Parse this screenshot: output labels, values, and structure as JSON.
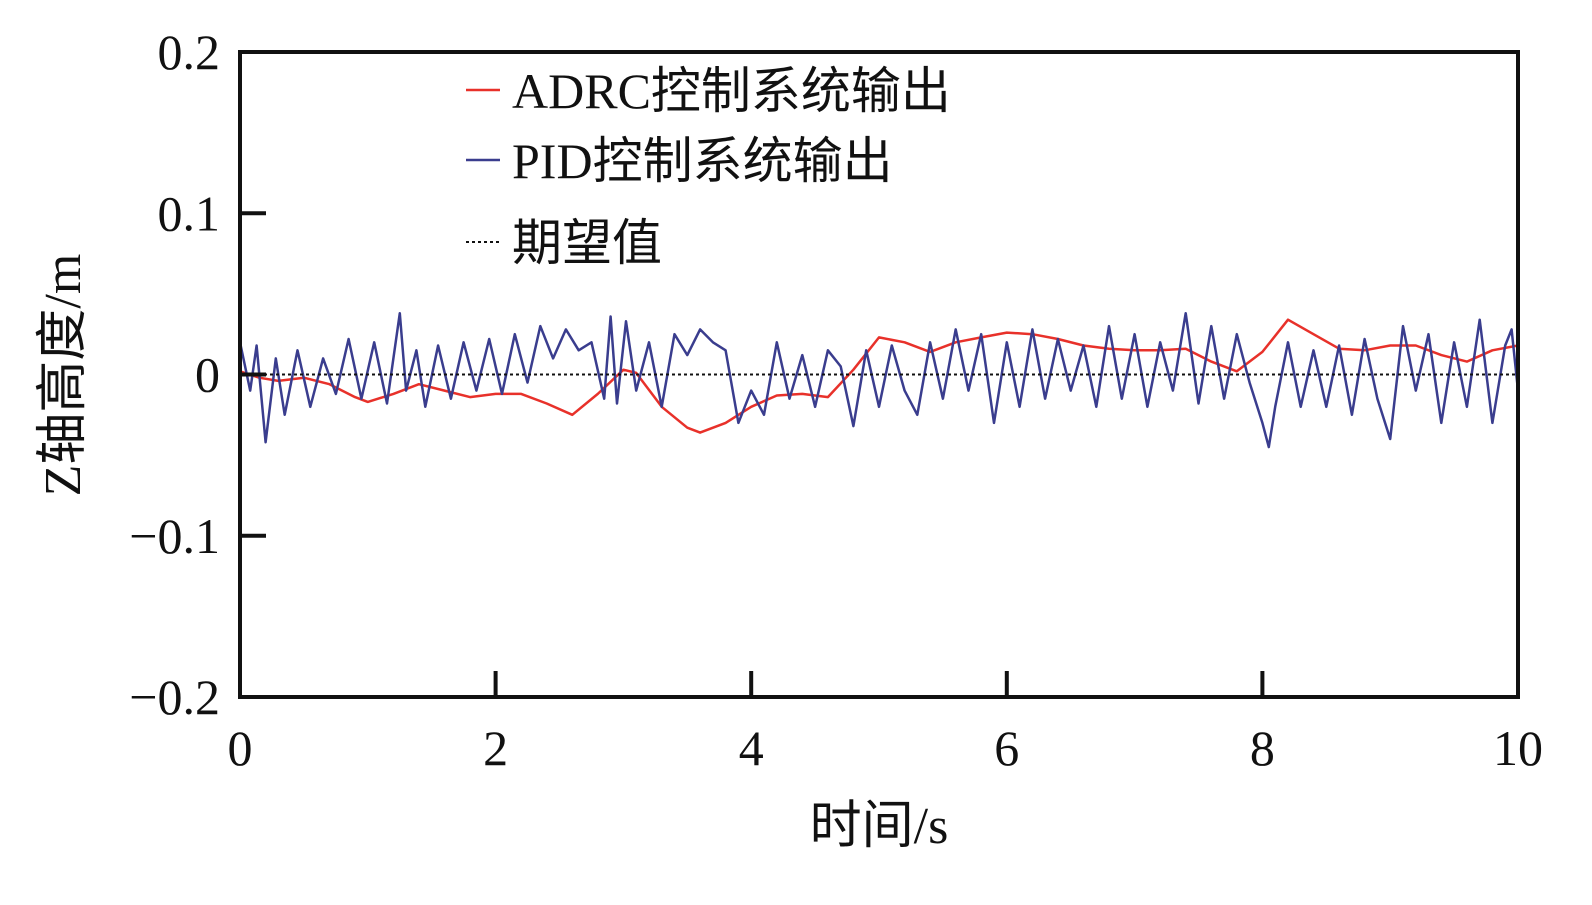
{
  "chart_data": {
    "type": "line",
    "title": "",
    "xlabel": "时间/s",
    "ylabel": "Z轴高度/m",
    "xlim": [
      0,
      10
    ],
    "ylim": [
      -0.2,
      0.2
    ],
    "xticks": [
      0,
      2,
      4,
      6,
      8,
      10
    ],
    "xtick_labels": [
      "0",
      "2",
      "4",
      "6",
      "8",
      "10"
    ],
    "yticks": [
      0.2,
      0.1,
      0,
      -0.1,
      -0.2
    ],
    "ytick_labels": [
      "0.2",
      "0.1",
      "0",
      "−0.1",
      "−0.2"
    ],
    "grid": false,
    "legend_position": "top-left",
    "series": [
      {
        "name": "ADRC控制系统输出",
        "color": "#e8312a",
        "style": "solid",
        "x": [
          0,
          0.15,
          0.3,
          0.5,
          0.7,
          0.9,
          1.0,
          1.2,
          1.4,
          1.6,
          1.8,
          2.0,
          2.2,
          2.4,
          2.6,
          2.8,
          3.0,
          3.1,
          3.3,
          3.5,
          3.6,
          3.8,
          4.0,
          4.2,
          4.4,
          4.6,
          4.8,
          5.0,
          5.2,
          5.4,
          5.6,
          5.8,
          6.0,
          6.2,
          6.4,
          6.6,
          6.8,
          7.0,
          7.2,
          7.4,
          7.6,
          7.8,
          8.0,
          8.2,
          8.4,
          8.6,
          8.8,
          9.0,
          9.2,
          9.4,
          9.6,
          9.8,
          10.0
        ],
        "y": [
          0.002,
          -0.002,
          -0.004,
          -0.002,
          -0.006,
          -0.014,
          -0.017,
          -0.012,
          -0.006,
          -0.01,
          -0.014,
          -0.012,
          -0.012,
          -0.018,
          -0.025,
          -0.012,
          0.003,
          0.001,
          -0.02,
          -0.033,
          -0.036,
          -0.03,
          -0.02,
          -0.013,
          -0.012,
          -0.014,
          0.003,
          0.023,
          0.02,
          0.014,
          0.02,
          0.023,
          0.026,
          0.025,
          0.022,
          0.018,
          0.016,
          0.015,
          0.015,
          0.016,
          0.008,
          0.002,
          0.014,
          0.034,
          0.025,
          0.016,
          0.015,
          0.018,
          0.018,
          0.012,
          0.008,
          0.015,
          0.018
        ]
      },
      {
        "name": "PID控制系统输出",
        "color": "#3a3d8e",
        "style": "solid",
        "x": [
          0,
          0.08,
          0.13,
          0.2,
          0.28,
          0.35,
          0.45,
          0.55,
          0.65,
          0.75,
          0.85,
          0.95,
          1.05,
          1.15,
          1.25,
          1.3,
          1.38,
          1.45,
          1.55,
          1.65,
          1.75,
          1.85,
          1.95,
          2.05,
          2.15,
          2.25,
          2.35,
          2.45,
          2.55,
          2.65,
          2.75,
          2.85,
          2.9,
          2.95,
          3.02,
          3.1,
          3.2,
          3.3,
          3.4,
          3.5,
          3.6,
          3.7,
          3.8,
          3.9,
          4.0,
          4.1,
          4.2,
          4.3,
          4.4,
          4.5,
          4.6,
          4.7,
          4.8,
          4.9,
          5.0,
          5.1,
          5.2,
          5.3,
          5.4,
          5.5,
          5.6,
          5.7,
          5.8,
          5.9,
          6.0,
          6.1,
          6.2,
          6.3,
          6.4,
          6.5,
          6.6,
          6.7,
          6.8,
          6.9,
          7.0,
          7.1,
          7.2,
          7.3,
          7.4,
          7.5,
          7.6,
          7.7,
          7.8,
          7.9,
          8.0,
          8.05,
          8.1,
          8.2,
          8.3,
          8.4,
          8.5,
          8.6,
          8.7,
          8.8,
          8.9,
          9.0,
          9.1,
          9.2,
          9.3,
          9.4,
          9.5,
          9.6,
          9.7,
          9.8,
          9.9,
          9.95,
          10.0
        ],
        "y": [
          0.02,
          -0.01,
          0.018,
          -0.042,
          0.01,
          -0.025,
          0.015,
          -0.02,
          0.01,
          -0.012,
          0.022,
          -0.015,
          0.02,
          -0.018,
          0.038,
          -0.01,
          0.015,
          -0.02,
          0.018,
          -0.015,
          0.02,
          -0.01,
          0.022,
          -0.012,
          0.025,
          -0.005,
          0.03,
          0.01,
          0.028,
          0.015,
          0.02,
          -0.015,
          0.036,
          -0.018,
          0.033,
          -0.01,
          0.02,
          -0.02,
          0.025,
          0.012,
          0.028,
          0.02,
          0.015,
          -0.03,
          -0.01,
          -0.025,
          0.02,
          -0.015,
          0.012,
          -0.02,
          0.015,
          0.005,
          -0.032,
          0.015,
          -0.02,
          0.018,
          -0.01,
          -0.025,
          0.02,
          -0.015,
          0.028,
          -0.01,
          0.025,
          -0.03,
          0.02,
          -0.02,
          0.028,
          -0.015,
          0.022,
          -0.01,
          0.018,
          -0.02,
          0.03,
          -0.015,
          0.025,
          -0.02,
          0.02,
          -0.01,
          0.038,
          -0.018,
          0.03,
          -0.015,
          0.025,
          -0.005,
          -0.03,
          -0.045,
          -0.02,
          0.02,
          -0.02,
          0.015,
          -0.02,
          0.018,
          -0.025,
          0.022,
          -0.015,
          -0.04,
          0.03,
          -0.01,
          0.025,
          -0.03,
          0.02,
          -0.02,
          0.034,
          -0.03,
          0.018,
          0.028,
          -0.01
        ]
      },
      {
        "name": "期望值",
        "color": "#111111",
        "style": "dotted",
        "x": [
          0,
          10
        ],
        "y": [
          0,
          0
        ]
      }
    ]
  }
}
